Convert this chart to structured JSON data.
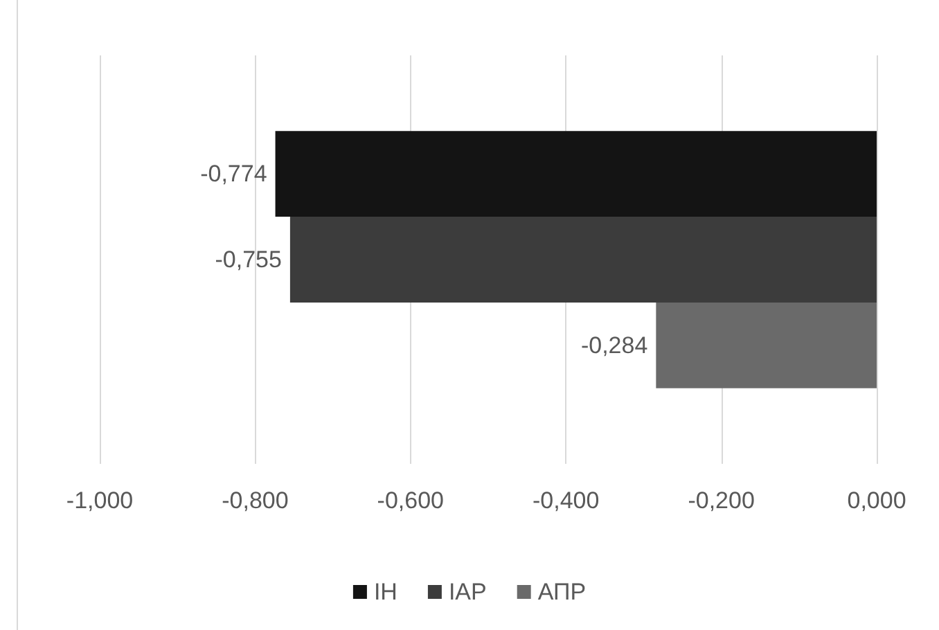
{
  "chart_data": {
    "type": "bar",
    "orientation": "horizontal",
    "categories": [
      null
    ],
    "series": [
      {
        "name": "ІН",
        "color": "#141414",
        "values": [
          -0.774
        ],
        "value_labels": [
          "-0,774"
        ]
      },
      {
        "name": "ІАР",
        "color": "#3c3c3c",
        "values": [
          -0.755
        ],
        "value_labels": [
          "-0,755"
        ]
      },
      {
        "name": "АПР",
        "color": "#6a6a6a",
        "values": [
          -0.284
        ],
        "value_labels": [
          "-0,284"
        ]
      }
    ],
    "xlim": [
      -1,
      0
    ],
    "xticks": [
      {
        "value": -1,
        "label": "-1,000"
      },
      {
        "value": -0.8,
        "label": "-0,800"
      },
      {
        "value": -0.6,
        "label": "-0,600"
      },
      {
        "value": -0.4,
        "label": "-0,400"
      },
      {
        "value": -0.2,
        "label": "-0,200"
      },
      {
        "value": 0,
        "label": "0,000"
      }
    ],
    "grid": "x",
    "legend": "bottom"
  }
}
